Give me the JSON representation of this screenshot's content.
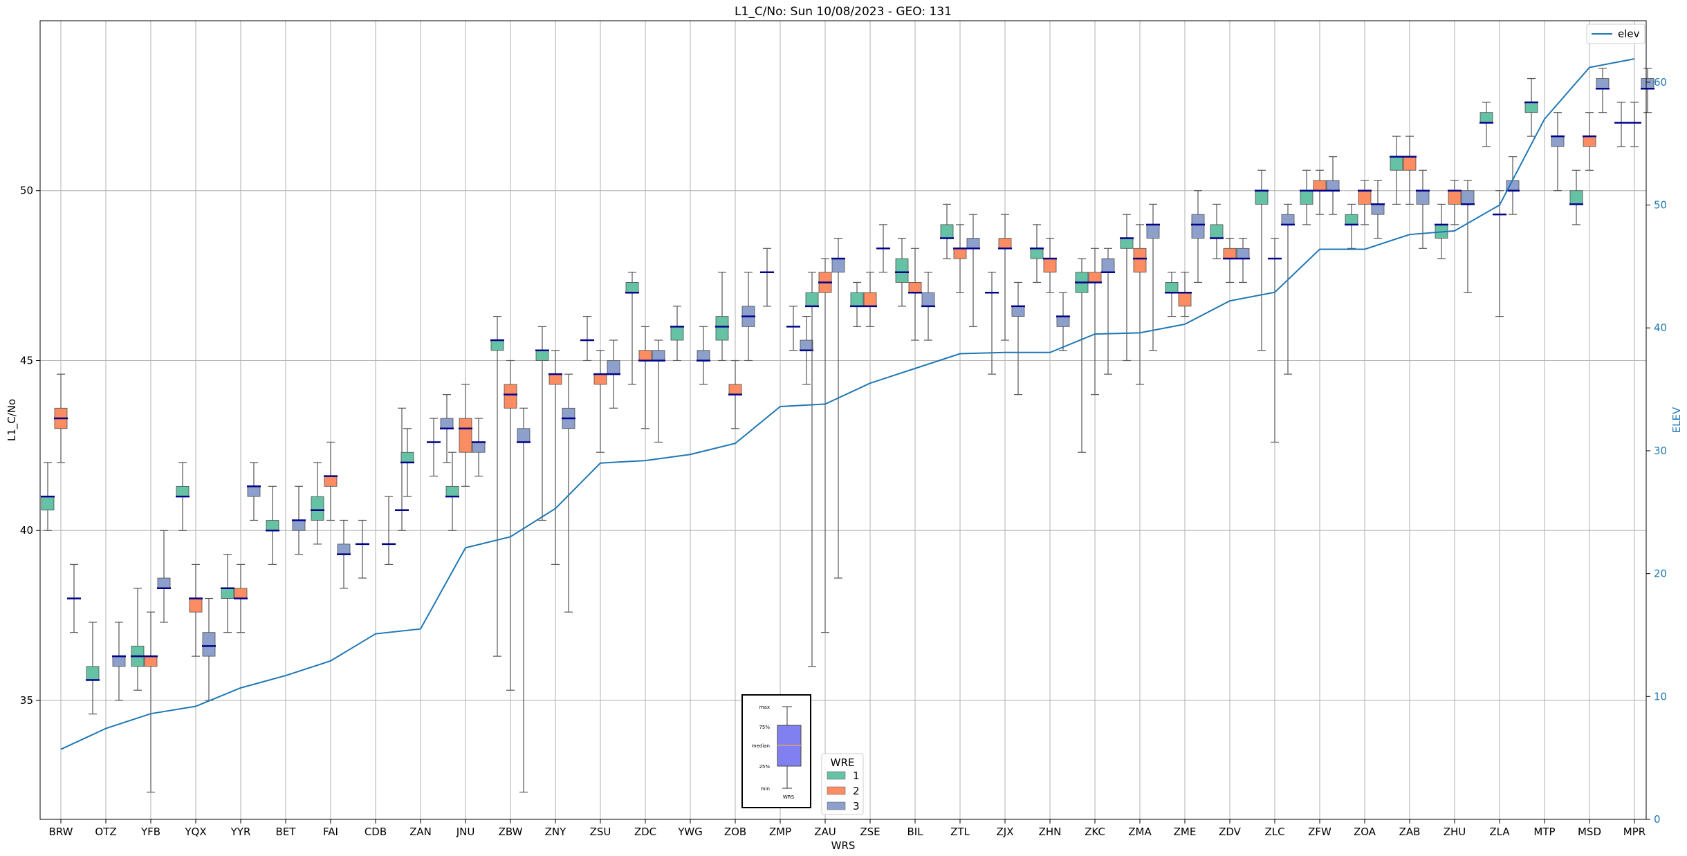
{
  "chart_data": {
    "type": "box",
    "title": "L1_C/No: Sun 10/08/2023 - GEO: 131",
    "xlabel": "WRS",
    "ylabel": "L1_C/No",
    "y2label": "ELEV",
    "ylim": [
      31.5,
      55
    ],
    "y2lim": [
      0,
      65
    ],
    "yticks": [
      35,
      40,
      45,
      50
    ],
    "y2ticks": [
      0,
      10,
      20,
      30,
      40,
      50,
      60
    ],
    "grid": true,
    "categories": [
      "BRW",
      "OTZ",
      "YFB",
      "YQX",
      "YYR",
      "BET",
      "FAI",
      "CDB",
      "ZAN",
      "JNU",
      "ZBW",
      "ZNY",
      "ZSU",
      "ZDC",
      "YWG",
      "ZOB",
      "ZMP",
      "ZAU",
      "ZSE",
      "BIL",
      "ZTL",
      "ZJX",
      "ZHN",
      "ZKC",
      "ZMA",
      "ZME",
      "ZDV",
      "ZLC",
      "ZFW",
      "ZOA",
      "ZAB",
      "ZHU",
      "ZLA",
      "MTP",
      "MSD",
      "MPR"
    ],
    "wre_colors": {
      "1": "#66c2a5",
      "2": "#fc8d62",
      "3": "#8da0cb"
    },
    "boxes": [
      {
        "cat": "BRW",
        "wre": 1,
        "min": 40,
        "q1": 40.6,
        "median": 41,
        "q3": 41,
        "max": 42
      },
      {
        "cat": "BRW",
        "wre": 2,
        "min": 42,
        "q1": 43,
        "median": 43.3,
        "q3": 43.6,
        "max": 44.6
      },
      {
        "cat": "BRW",
        "wre": 3,
        "min": 37,
        "q1": 38,
        "median": 38,
        "q3": 38,
        "max": 39
      },
      {
        "cat": "OTZ",
        "wre": 1,
        "min": 34.6,
        "q1": 35.6,
        "median": 35.6,
        "q3": 36,
        "max": 37.3
      },
      {
        "cat": "OTZ",
        "wre": 3,
        "min": 35,
        "q1": 36,
        "median": 36.3,
        "q3": 36.3,
        "max": 37.3
      },
      {
        "cat": "YFB",
        "wre": 1,
        "min": 35.3,
        "q1": 36,
        "median": 36.3,
        "q3": 36.6,
        "max": 38.3
      },
      {
        "cat": "YFB",
        "wre": 2,
        "min": 32.3,
        "q1": 36,
        "median": 36.3,
        "q3": 36.3,
        "max": 37.6
      },
      {
        "cat": "YFB",
        "wre": 3,
        "min": 37.3,
        "q1": 38.3,
        "median": 38.3,
        "q3": 38.6,
        "max": 40
      },
      {
        "cat": "YQX",
        "wre": 1,
        "min": 40,
        "q1": 41,
        "median": 41,
        "q3": 41.3,
        "max": 42
      },
      {
        "cat": "YQX",
        "wre": 2,
        "min": 36.3,
        "q1": 37.6,
        "median": 38,
        "q3": 38,
        "max": 39
      },
      {
        "cat": "YQX",
        "wre": 3,
        "min": 35,
        "q1": 36.3,
        "median": 36.6,
        "q3": 37,
        "max": 38
      },
      {
        "cat": "YYR",
        "wre": 1,
        "min": 37,
        "q1": 38,
        "median": 38.3,
        "q3": 38.3,
        "max": 39.3
      },
      {
        "cat": "YYR",
        "wre": 2,
        "min": 37,
        "q1": 38,
        "median": 38,
        "q3": 38.3,
        "max": 39
      },
      {
        "cat": "YYR",
        "wre": 3,
        "min": 40.3,
        "q1": 41,
        "median": 41.3,
        "q3": 41.3,
        "max": 42
      },
      {
        "cat": "BET",
        "wre": 1,
        "min": 39,
        "q1": 40,
        "median": 40,
        "q3": 40.3,
        "max": 41.3
      },
      {
        "cat": "BET",
        "wre": 3,
        "min": 39.3,
        "q1": 40,
        "median": 40.3,
        "q3": 40.3,
        "max": 41.3
      },
      {
        "cat": "FAI",
        "wre": 1,
        "min": 39.6,
        "q1": 40.3,
        "median": 40.6,
        "q3": 41,
        "max": 42
      },
      {
        "cat": "FAI",
        "wre": 2,
        "min": 40.3,
        "q1": 41.3,
        "median": 41.6,
        "q3": 41.6,
        "max": 42.6
      },
      {
        "cat": "FAI",
        "wre": 3,
        "min": 38.3,
        "q1": 39.3,
        "median": 39.3,
        "q3": 39.6,
        "max": 40.3
      },
      {
        "cat": "CDB",
        "wre": 1,
        "min": 38.6,
        "q1": 39.6,
        "median": 39.6,
        "q3": 39.6,
        "max": 40.3
      },
      {
        "cat": "CDB",
        "wre": 3,
        "min": 39,
        "q1": 39.6,
        "median": 39.6,
        "q3": 39.6,
        "max": 41
      },
      {
        "cat": "CDB",
        "wre": 4,
        "min": 40,
        "q1": 40.6,
        "median": 40.6,
        "q3": 40.6,
        "max": 43.6
      },
      {
        "cat": "ZAN",
        "wre": 1,
        "min": 41,
        "q1": 42,
        "median": 42,
        "q3": 42.3,
        "max": 43
      },
      {
        "cat": "ZAN",
        "wre": 3,
        "min": 41.6,
        "q1": 42.6,
        "median": 42.6,
        "q3": 42.6,
        "max": 43.3
      },
      {
        "cat": "ZAN",
        "wre": 4,
        "min": 42,
        "q1": 43,
        "median": 43,
        "q3": 43.3,
        "max": 44
      },
      {
        "cat": "JNU",
        "wre": 1,
        "min": 40,
        "q1": 41,
        "median": 41,
        "q3": 41.3,
        "max": 42.3
      },
      {
        "cat": "JNU",
        "wre": 2,
        "min": 41.3,
        "q1": 42.3,
        "median": 43,
        "q3": 43.3,
        "max": 44.3
      },
      {
        "cat": "JNU",
        "wre": 3,
        "min": 41.6,
        "q1": 42.3,
        "median": 42.6,
        "q3": 42.6,
        "max": 43.3
      },
      {
        "cat": "ZBW",
        "wre": 1,
        "min": 36.3,
        "q1": 45.3,
        "median": 45.6,
        "q3": 45.6,
        "max": 46.3
      },
      {
        "cat": "ZBW",
        "wre": 2,
        "min": 35.3,
        "q1": 43.6,
        "median": 44,
        "q3": 44.3,
        "max": 45
      },
      {
        "cat": "ZBW",
        "wre": 3,
        "min": 32.3,
        "q1": 42.6,
        "median": 42.6,
        "q3": 43,
        "max": 43.6
      },
      {
        "cat": "ZNY",
        "wre": 1,
        "min": 40.3,
        "q1": 45,
        "median": 45.3,
        "q3": 45.3,
        "max": 46
      },
      {
        "cat": "ZNY",
        "wre": 2,
        "min": 39,
        "q1": 44.3,
        "median": 44.6,
        "q3": 44.6,
        "max": 45.3
      },
      {
        "cat": "ZNY",
        "wre": 3,
        "min": 37.6,
        "q1": 43,
        "median": 43.3,
        "q3": 43.6,
        "max": 44.6
      },
      {
        "cat": "ZSU",
        "wre": 1,
        "min": 45,
        "q1": 45.6,
        "median": 45.6,
        "q3": 45.6,
        "max": 46.3
      },
      {
        "cat": "ZSU",
        "wre": 2,
        "min": 42.3,
        "q1": 44.3,
        "median": 44.6,
        "q3": 44.6,
        "max": 45.3
      },
      {
        "cat": "ZSU",
        "wre": 3,
        "min": 43.6,
        "q1": 44.6,
        "median": 44.6,
        "q3": 45,
        "max": 45.6
      },
      {
        "cat": "ZDC",
        "wre": 1,
        "min": 44.3,
        "q1": 47,
        "median": 47,
        "q3": 47.3,
        "max": 47.6
      },
      {
        "cat": "ZDC",
        "wre": 2,
        "min": 43,
        "q1": 45,
        "median": 45,
        "q3": 45.3,
        "max": 46
      },
      {
        "cat": "ZDC",
        "wre": 3,
        "min": 42.6,
        "q1": 45,
        "median": 45,
        "q3": 45.3,
        "max": 45.6
      },
      {
        "cat": "YWG",
        "wre": 1,
        "min": 45,
        "q1": 45.6,
        "median": 46,
        "q3": 46,
        "max": 46.6
      },
      {
        "cat": "YWG",
        "wre": 3,
        "min": 44.3,
        "q1": 45,
        "median": 45,
        "q3": 45.3,
        "max": 46
      },
      {
        "cat": "ZOB",
        "wre": 1,
        "min": 45,
        "q1": 45.6,
        "median": 46,
        "q3": 46.3,
        "max": 47.6
      },
      {
        "cat": "ZOB",
        "wre": 2,
        "min": 43,
        "q1": 44,
        "median": 44,
        "q3": 44.3,
        "max": 45
      },
      {
        "cat": "ZOB",
        "wre": 3,
        "min": 45,
        "q1": 46,
        "median": 46.3,
        "q3": 46.6,
        "max": 47.6
      },
      {
        "cat": "ZMP",
        "wre": 1,
        "min": 46.6,
        "q1": 47.6,
        "median": 47.6,
        "q3": 47.6,
        "max": 48.3
      },
      {
        "cat": "ZMP",
        "wre": 3,
        "min": 45.3,
        "q1": 46,
        "median": 46,
        "q3": 46,
        "max": 46.6
      },
      {
        "cat": "ZMP",
        "wre": 4,
        "min": 44.3,
        "q1": 45.3,
        "median": 45.3,
        "q3": 45.6,
        "max": 46.3
      },
      {
        "cat": "ZAU",
        "wre": 1,
        "min": 36,
        "q1": 46.6,
        "median": 46.6,
        "q3": 47,
        "max": 47.6
      },
      {
        "cat": "ZAU",
        "wre": 2,
        "min": 37,
        "q1": 47,
        "median": 47.3,
        "q3": 47.6,
        "max": 48
      },
      {
        "cat": "ZAU",
        "wre": 3,
        "min": 38.6,
        "q1": 47.6,
        "median": 48,
        "q3": 48,
        "max": 48.6
      },
      {
        "cat": "ZSE",
        "wre": 1,
        "min": 46,
        "q1": 46.6,
        "median": 46.6,
        "q3": 47,
        "max": 47.3
      },
      {
        "cat": "ZSE",
        "wre": 2,
        "min": 46,
        "q1": 46.6,
        "median": 46.6,
        "q3": 47,
        "max": 47.6
      },
      {
        "cat": "ZSE",
        "wre": 3,
        "min": 47.6,
        "q1": 48.3,
        "median": 48.3,
        "q3": 48.3,
        "max": 49
      },
      {
        "cat": "BIL",
        "wre": 1,
        "min": 46.6,
        "q1": 47.3,
        "median": 47.6,
        "q3": 48,
        "max": 48.6
      },
      {
        "cat": "BIL",
        "wre": 2,
        "min": 45.6,
        "q1": 47,
        "median": 47,
        "q3": 47.3,
        "max": 48.3
      },
      {
        "cat": "BIL",
        "wre": 3,
        "min": 45.6,
        "q1": 46.6,
        "median": 46.6,
        "q3": 47,
        "max": 47.6
      },
      {
        "cat": "ZTL",
        "wre": 1,
        "min": 48,
        "q1": 48.6,
        "median": 48.6,
        "q3": 49,
        "max": 49.6
      },
      {
        "cat": "ZTL",
        "wre": 2,
        "min": 47,
        "q1": 48,
        "median": 48.3,
        "q3": 48.3,
        "max": 49
      },
      {
        "cat": "ZTL",
        "wre": 3,
        "min": 46,
        "q1": 48.3,
        "median": 48.3,
        "q3": 48.6,
        "max": 49.3
      },
      {
        "cat": "ZJX",
        "wre": 1,
        "min": 44.6,
        "q1": 47,
        "median": 47,
        "q3": 47,
        "max": 47.6
      },
      {
        "cat": "ZJX",
        "wre": 2,
        "min": 45.6,
        "q1": 48.3,
        "median": 48.3,
        "q3": 48.6,
        "max": 49.3
      },
      {
        "cat": "ZJX",
        "wre": 3,
        "min": 44,
        "q1": 46.3,
        "median": 46.6,
        "q3": 46.6,
        "max": 47.3
      },
      {
        "cat": "ZHN",
        "wre": 1,
        "min": 47.3,
        "q1": 48,
        "median": 48.3,
        "q3": 48.3,
        "max": 49
      },
      {
        "cat": "ZHN",
        "wre": 2,
        "min": 47,
        "q1": 47.6,
        "median": 48,
        "q3": 48,
        "max": 48.6
      },
      {
        "cat": "ZHN",
        "wre": 3,
        "min": 45.3,
        "q1": 46,
        "median": 46.3,
        "q3": 46.3,
        "max": 47
      },
      {
        "cat": "ZKC",
        "wre": 1,
        "min": 42.3,
        "q1": 47,
        "median": 47.3,
        "q3": 47.6,
        "max": 48
      },
      {
        "cat": "ZKC",
        "wre": 2,
        "min": 44,
        "q1": 47.3,
        "median": 47.3,
        "q3": 47.6,
        "max": 48.3
      },
      {
        "cat": "ZKC",
        "wre": 3,
        "min": 44.6,
        "q1": 47.6,
        "median": 47.6,
        "q3": 48,
        "max": 48.3
      },
      {
        "cat": "ZMA",
        "wre": 1,
        "min": 45,
        "q1": 48.3,
        "median": 48.6,
        "q3": 48.6,
        "max": 49.3
      },
      {
        "cat": "ZMA",
        "wre": 2,
        "min": 44.3,
        "q1": 47.6,
        "median": 48,
        "q3": 48.3,
        "max": 49
      },
      {
        "cat": "ZMA",
        "wre": 3,
        "min": 45.3,
        "q1": 48.6,
        "median": 49,
        "q3": 49,
        "max": 49.6
      },
      {
        "cat": "ZME",
        "wre": 1,
        "min": 46.3,
        "q1": 47,
        "median": 47,
        "q3": 47.3,
        "max": 47.6
      },
      {
        "cat": "ZME",
        "wre": 2,
        "min": 46.3,
        "q1": 46.6,
        "median": 47,
        "q3": 47,
        "max": 47.6
      },
      {
        "cat": "ZME",
        "wre": 3,
        "min": 47.3,
        "q1": 48.6,
        "median": 49,
        "q3": 49.3,
        "max": 50
      },
      {
        "cat": "ZDV",
        "wre": 1,
        "min": 48,
        "q1": 48.6,
        "median": 48.6,
        "q3": 49,
        "max": 49.6
      },
      {
        "cat": "ZDV",
        "wre": 2,
        "min": 47.3,
        "q1": 48,
        "median": 48,
        "q3": 48.3,
        "max": 48.6
      },
      {
        "cat": "ZDV",
        "wre": 3,
        "min": 47.3,
        "q1": 48,
        "median": 48,
        "q3": 48.3,
        "max": 48.6
      },
      {
        "cat": "ZLC",
        "wre": 1,
        "min": 45.3,
        "q1": 49.6,
        "median": 50,
        "q3": 50,
        "max": 50.6
      },
      {
        "cat": "ZLC",
        "wre": 2,
        "min": 42.6,
        "q1": 48,
        "median": 48,
        "q3": 48,
        "max": 48.6
      },
      {
        "cat": "ZLC",
        "wre": 3,
        "min": 44.6,
        "q1": 49,
        "median": 49,
        "q3": 49.3,
        "max": 49.6
      },
      {
        "cat": "ZFW",
        "wre": 1,
        "min": 49,
        "q1": 49.6,
        "median": 50,
        "q3": 50,
        "max": 50.6
      },
      {
        "cat": "ZFW",
        "wre": 2,
        "min": 49.3,
        "q1": 50,
        "median": 50,
        "q3": 50.3,
        "max": 50.6
      },
      {
        "cat": "ZFW",
        "wre": 3,
        "min": 49.3,
        "q1": 50,
        "median": 50,
        "q3": 50.3,
        "max": 51
      },
      {
        "cat": "ZOA",
        "wre": 1,
        "min": 48.3,
        "q1": 49,
        "median": 49,
        "q3": 49.3,
        "max": 49.6
      },
      {
        "cat": "ZOA",
        "wre": 2,
        "min": 49,
        "q1": 49.6,
        "median": 50,
        "q3": 50,
        "max": 50.3
      },
      {
        "cat": "ZOA",
        "wre": 3,
        "min": 48.6,
        "q1": 49.3,
        "median": 49.6,
        "q3": 49.6,
        "max": 50.3
      },
      {
        "cat": "ZAB",
        "wre": 1,
        "min": 49.6,
        "q1": 50.6,
        "median": 51,
        "q3": 51,
        "max": 51.6
      },
      {
        "cat": "ZAB",
        "wre": 2,
        "min": 49.6,
        "q1": 50.6,
        "median": 51,
        "q3": 51,
        "max": 51.6
      },
      {
        "cat": "ZAB",
        "wre": 3,
        "min": 48.3,
        "q1": 49.6,
        "median": 50,
        "q3": 50,
        "max": 50.6
      },
      {
        "cat": "ZHU",
        "wre": 1,
        "min": 48,
        "q1": 48.6,
        "median": 49,
        "q3": 49,
        "max": 49.6
      },
      {
        "cat": "ZHU",
        "wre": 2,
        "min": 49,
        "q1": 49.6,
        "median": 50,
        "q3": 50,
        "max": 50.3
      },
      {
        "cat": "ZHU",
        "wre": 3,
        "min": 47,
        "q1": 49.6,
        "median": 49.6,
        "q3": 50,
        "max": 50.3
      },
      {
        "cat": "ZLA",
        "wre": 1,
        "min": 51.3,
        "q1": 52,
        "median": 52,
        "q3": 52.3,
        "max": 52.6
      },
      {
        "cat": "ZLA",
        "wre": 2,
        "min": 46.3,
        "q1": 49.3,
        "median": 49.3,
        "q3": 49.3,
        "max": 50
      },
      {
        "cat": "ZLA",
        "wre": 3,
        "min": 49.3,
        "q1": 50,
        "median": 50,
        "q3": 50.3,
        "max": 51
      },
      {
        "cat": "MTP",
        "wre": 1,
        "min": 51.6,
        "q1": 52.3,
        "median": 52.6,
        "q3": 52.6,
        "max": 53.3
      },
      {
        "cat": "MTP",
        "wre": 3,
        "min": 50,
        "q1": 51.3,
        "median": 51.6,
        "q3": 51.6,
        "max": 52.3
      },
      {
        "cat": "MSD",
        "wre": 1,
        "min": 49,
        "q1": 49.6,
        "median": 49.6,
        "q3": 50,
        "max": 50.6
      },
      {
        "cat": "MSD",
        "wre": 2,
        "min": 50.6,
        "q1": 51.3,
        "median": 51.6,
        "q3": 51.6,
        "max": 52.3
      },
      {
        "cat": "MSD",
        "wre": 3,
        "min": 52.3,
        "q1": 53,
        "median": 53,
        "q3": 53.3,
        "max": 53.6
      },
      {
        "cat": "MPR",
        "wre": 1,
        "min": 51.3,
        "q1": 52,
        "median": 52,
        "q3": 52,
        "max": 52.6
      },
      {
        "cat": "MPR",
        "wre": 2,
        "min": 51.3,
        "q1": 52,
        "median": 52,
        "q3": 52,
        "max": 52.6
      },
      {
        "cat": "MPR",
        "wre": 3,
        "min": 52.3,
        "q1": 53,
        "median": 53,
        "q3": 53.3,
        "max": 53.6
      }
    ],
    "elev_series": {
      "name": "elev",
      "color": "#1f77b4",
      "values": [
        5.7,
        7.4,
        8.6,
        9.2,
        10.7,
        11.7,
        12.9,
        15.1,
        15.5,
        22.1,
        23.0,
        25.3,
        29.0,
        29.2,
        29.7,
        30.6,
        33.6,
        33.8,
        35.5,
        36.7,
        37.9,
        38.0,
        38.0,
        39.5,
        39.6,
        40.3,
        42.2,
        42.9,
        46.4,
        46.4,
        47.6,
        47.9,
        50.0,
        57.0,
        61.2,
        61.9
      ]
    },
    "legend": {
      "title": "WRE",
      "entries": [
        "1",
        "2",
        "3"
      ],
      "placement": "bottom-center"
    },
    "legend2": {
      "entries": [
        "elev"
      ],
      "placement": "top-right"
    },
    "key_inset": {
      "labels": [
        "max",
        "75%",
        "median",
        "25%",
        "min"
      ],
      "xlabel": "WRS"
    }
  }
}
